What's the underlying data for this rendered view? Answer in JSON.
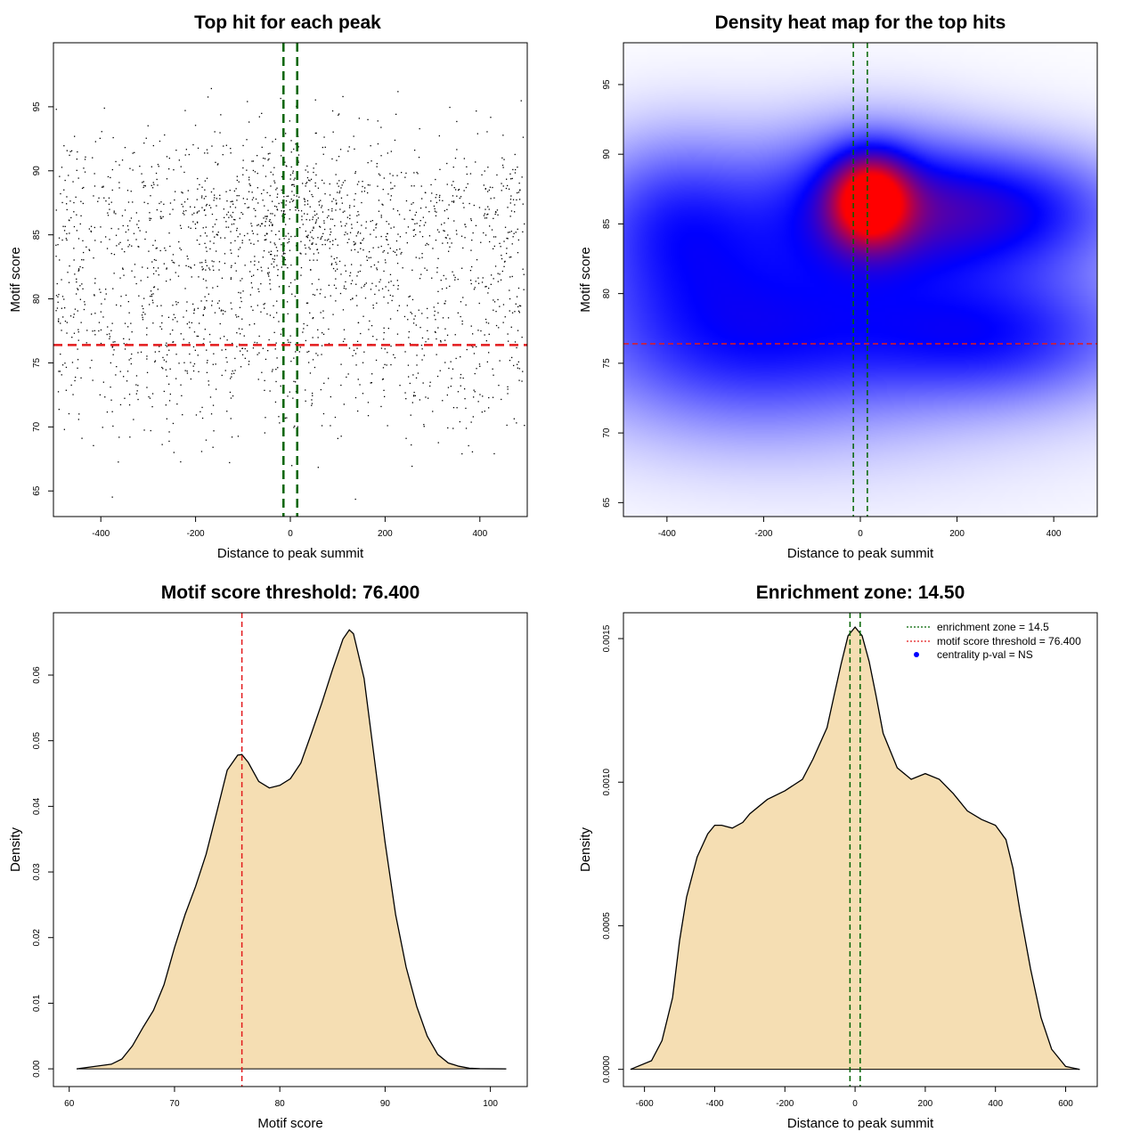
{
  "chart_data": [
    {
      "type": "scatter",
      "title": "Top hit for each peak",
      "xlabel": "Distance to peak summit",
      "ylabel": "Motif score",
      "xlim": [
        -500,
        500
      ],
      "ylim": [
        63,
        100
      ],
      "xticks": [
        -400,
        -200,
        0,
        200,
        400
      ],
      "yticks": [
        65,
        70,
        75,
        80,
        85,
        90,
        95
      ],
      "points": {
        "n": 2200,
        "x_range": [
          -495,
          495
        ],
        "y_peak_center": [
          10,
          86.5
        ],
        "note": ""
      },
      "vlines": [
        -14.5,
        14.5
      ],
      "hline": 76.4,
      "colors": {
        "points": "#000000",
        "threshold": "#e31a1c",
        "zone": "#006400"
      },
      "grid": false
    },
    {
      "type": "heatmap",
      "title": "Density heat map for the top hits",
      "xlabel": "Distance to peak summit",
      "ylabel": "Motif score",
      "xlim": [
        -490,
        490
      ],
      "ylim": [
        64,
        98
      ],
      "xticks": [
        -400,
        -200,
        0,
        200,
        400
      ],
      "yticks": [
        65,
        70,
        75,
        80,
        85,
        90,
        95
      ],
      "peak": [
        25,
        86.8
      ],
      "vlines": [
        -14.5,
        14.5
      ],
      "hline": 76.4,
      "colors": {
        "low": "#ffffff",
        "mid": "#0000ff",
        "high": "#ff0000",
        "threshold": "#e31a1c",
        "zone": "#006400"
      },
      "grid": false
    },
    {
      "type": "area",
      "title": "Motif score threshold: 76.400",
      "xlabel": "Motif score",
      "ylabel": "Density",
      "xlim": [
        58.5,
        103.5
      ],
      "ylim": [
        -0.0027,
        0.0695
      ],
      "xticks": [
        60,
        70,
        80,
        90,
        100
      ],
      "yticks": [
        0.0,
        0.01,
        0.02,
        0.03,
        0.04,
        0.05,
        0.06
      ],
      "ytick_labels": [
        "0.00",
        "0.01",
        "0.02",
        "0.03",
        "0.04",
        "0.05",
        "0.06"
      ],
      "x": [
        60.7,
        64,
        65,
        66,
        67,
        68,
        69,
        70,
        71,
        72,
        73,
        74,
        75,
        76,
        76.4,
        77,
        78,
        79,
        80,
        81,
        82,
        83,
        84,
        85,
        86,
        86.6,
        87,
        88,
        89,
        90,
        91,
        92,
        93,
        94,
        95,
        96,
        97,
        98,
        99,
        101.5
      ],
      "y": [
        0.0,
        0.0007,
        0.0015,
        0.0035,
        0.0063,
        0.0089,
        0.0128,
        0.0185,
        0.0235,
        0.0278,
        0.0327,
        0.039,
        0.0455,
        0.0478,
        0.0479,
        0.0467,
        0.0438,
        0.0428,
        0.0432,
        0.0442,
        0.0466,
        0.0511,
        0.0558,
        0.0608,
        0.0655,
        0.0669,
        0.0663,
        0.0595,
        0.047,
        0.0345,
        0.0235,
        0.0155,
        0.0095,
        0.005,
        0.0022,
        0.0009,
        0.0004,
        0.0001,
        3e-05,
        0.0
      ],
      "vline": 76.4,
      "colors": {
        "fill": "#f5deb3",
        "line": "#000000",
        "threshold": "#e31a1c"
      },
      "grid": false
    },
    {
      "type": "area",
      "title": "Enrichment zone: 14.50",
      "xlabel": "Distance to peak summit",
      "ylabel": "Density",
      "xlim": [
        -660,
        690
      ],
      "ylim": [
        -6e-05,
        0.00159
      ],
      "xticks": [
        -600,
        -400,
        -200,
        0,
        200,
        400,
        600
      ],
      "yticks": [
        0.0,
        0.0005,
        0.001,
        0.0015
      ],
      "ytick_labels": [
        "0.0000",
        "0.0005",
        "0.0010",
        "0.0015"
      ],
      "x": [
        -640,
        -580,
        -550,
        -520,
        -500,
        -480,
        -450,
        -420,
        -400,
        -380,
        -350,
        -320,
        -300,
        -250,
        -200,
        -150,
        -120,
        -80,
        -60,
        -40,
        -20,
        0,
        20,
        40,
        60,
        80,
        120,
        160,
        200,
        240,
        280,
        320,
        360,
        400,
        430,
        450,
        470,
        500,
        530,
        560,
        600,
        640
      ],
      "y": [
        0.0,
        3e-05,
        0.0001,
        0.00025,
        0.00045,
        0.0006,
        0.00074,
        0.00082,
        0.00085,
        0.00085,
        0.00084,
        0.00086,
        0.00089,
        0.00094,
        0.00097,
        0.00101,
        0.00108,
        0.00119,
        0.0013,
        0.00141,
        0.00151,
        0.00154,
        0.00151,
        0.00142,
        0.0013,
        0.00117,
        0.00105,
        0.00101,
        0.00103,
        0.00101,
        0.00096,
        0.0009,
        0.00087,
        0.00085,
        0.0008,
        0.0007,
        0.00055,
        0.00035,
        0.00018,
        7e-05,
        1e-05,
        0.0
      ],
      "vlines": [
        -14.5,
        14.5
      ],
      "colors": {
        "fill": "#f5deb3",
        "line": "#000000",
        "zone": "#006400"
      },
      "legend": {
        "position": "top-right",
        "items": [
          {
            "label": "enrichment zone = 14.5",
            "color": "#006400",
            "style": "dotted"
          },
          {
            "label": "motif score threshold = 76.400",
            "color": "#e31a1c",
            "style": "dotted"
          },
          {
            "label": "centrality p-val = NS",
            "color": "#0000ff",
            "style": "point"
          }
        ]
      },
      "grid": false
    }
  ]
}
